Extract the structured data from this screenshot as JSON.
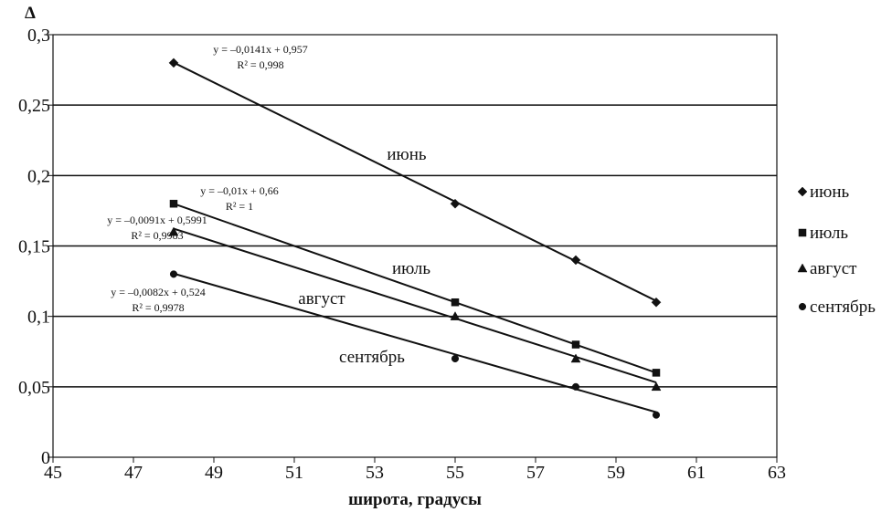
{
  "chart_data": {
    "type": "scatter",
    "ylabel": "Δ",
    "xlabel": "широта, градусы",
    "xlim": [
      45,
      63
    ],
    "ylim": [
      0,
      0.3
    ],
    "x_ticks": [
      {
        "value": 45,
        "label": "45"
      },
      {
        "value": 47,
        "label": "47"
      },
      {
        "value": 49,
        "label": "49"
      },
      {
        "value": 51,
        "label": "51"
      },
      {
        "value": 53,
        "label": "53"
      },
      {
        "value": 55,
        "label": "55"
      },
      {
        "value": 57,
        "label": "57"
      },
      {
        "value": 59,
        "label": "59"
      },
      {
        "value": 61,
        "label": "61"
      },
      {
        "value": 63,
        "label": "63"
      }
    ],
    "y_ticks": [
      {
        "value": 0,
        "label": "0"
      },
      {
        "value": 0.05,
        "label": "0,05"
      },
      {
        "value": 0.1,
        "label": "0,1"
      },
      {
        "value": 0.15,
        "label": "0,15"
      },
      {
        "value": 0.2,
        "label": "0,2"
      },
      {
        "value": 0.25,
        "label": "0,25"
      },
      {
        "value": 0.3,
        "label": "0,3"
      }
    ],
    "grid": "horizontal",
    "legend_position": "right",
    "series": [
      {
        "name": "июнь",
        "marker": "diamond",
        "x": [
          48,
          55,
          58,
          60
        ],
        "y": [
          0.28,
          0.18,
          0.14,
          0.11
        ],
        "trendline": {
          "slope": -0.0141,
          "intercept": 0.957
        },
        "equation": "y = –0,0141x + 0,957",
        "r2": "R² = 0,998",
        "label": "июнь"
      },
      {
        "name": "июль",
        "marker": "square",
        "x": [
          48,
          55,
          58,
          60
        ],
        "y": [
          0.18,
          0.11,
          0.08,
          0.06
        ],
        "trendline": {
          "slope": -0.01,
          "intercept": 0.66
        },
        "equation": "y = –0,01x + 0,66",
        "r2": "R² = 1",
        "label": "июль"
      },
      {
        "name": "август",
        "marker": "triangle",
        "x": [
          48,
          55,
          58,
          60
        ],
        "y": [
          0.16,
          0.1,
          0.07,
          0.05
        ],
        "trendline": {
          "slope": -0.0091,
          "intercept": 0.5991
        },
        "equation": "y = –0,0091x + 0,5991",
        "r2": "R² = 0,9983",
        "label": "август"
      },
      {
        "name": "сентябрь",
        "marker": "circle",
        "x": [
          48,
          55,
          58,
          60
        ],
        "y": [
          0.13,
          0.07,
          0.05,
          0.03
        ],
        "trendline": {
          "slope": -0.0082,
          "intercept": 0.524
        },
        "equation": "y = –0,0082x + 0,524",
        "r2": "R² = 0,9978",
        "label": "сентябрь"
      }
    ]
  }
}
